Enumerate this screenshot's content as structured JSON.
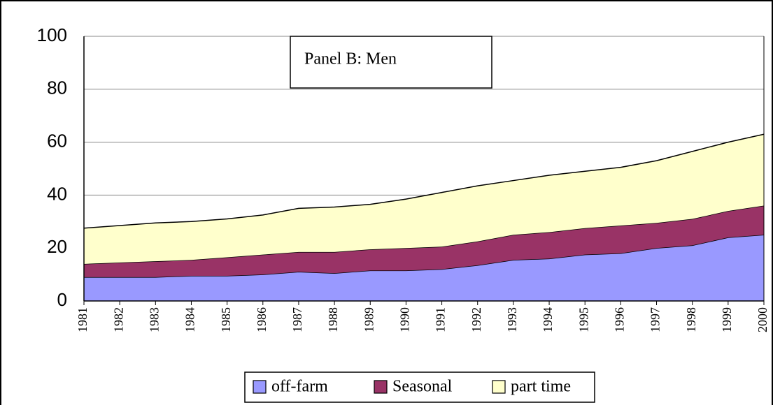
{
  "chart_data": {
    "type": "stacked-area",
    "annotation": "Panel B: Men",
    "categories": [
      "1981",
      "1982",
      "1983",
      "1984",
      "1985",
      "1986",
      "1987",
      "1988",
      "1989",
      "1990",
      "1991",
      "1992",
      "1993",
      "1994",
      "1995",
      "1996",
      "1997",
      "1998",
      "1999",
      "2000"
    ],
    "series": [
      {
        "name": "off-farm",
        "color": "#9999ff",
        "values": [
          9,
          9,
          9,
          9.5,
          9.5,
          10,
          11,
          10.5,
          11.5,
          11.5,
          12,
          13.5,
          15.5,
          16,
          17.5,
          18,
          20,
          21,
          24,
          25
        ]
      },
      {
        "name": "Seasonal",
        "color": "#993366",
        "values": [
          5,
          5.5,
          6,
          6,
          7,
          7.5,
          7.5,
          8,
          8,
          8.5,
          8.5,
          9,
          9.5,
          10,
          10,
          10.5,
          9.5,
          10,
          10,
          11
        ]
      },
      {
        "name": "part time",
        "color": "#ffffcc",
        "values": [
          13.5,
          14,
          14.5,
          14.5,
          14.5,
          15,
          16.5,
          17,
          17,
          18.5,
          20.5,
          21,
          20.5,
          21.5,
          21.5,
          22,
          23.5,
          25.5,
          26,
          27
        ]
      }
    ],
    "ylim": [
      0,
      100
    ],
    "yticks": [
      0,
      20,
      40,
      60,
      80,
      100
    ],
    "grid": true,
    "legend": "bottom"
  }
}
